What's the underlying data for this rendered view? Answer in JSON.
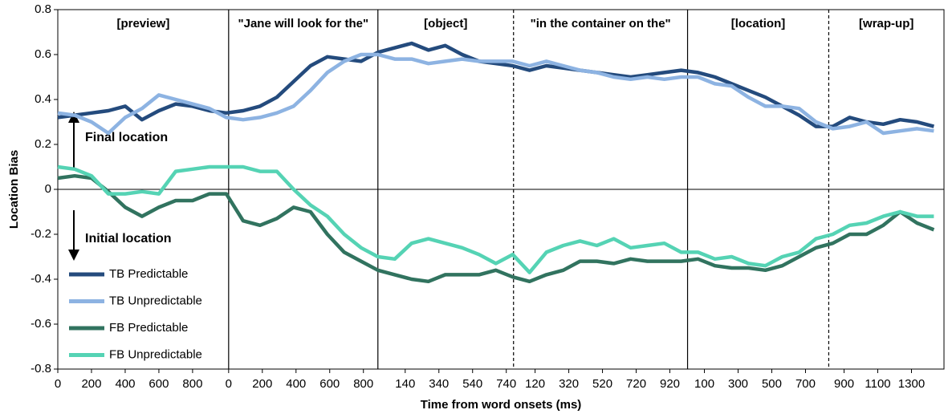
{
  "chart_data": {
    "type": "line",
    "y_label": "Location Bias",
    "x_label": "Time from word onsets (ms)",
    "segments": [
      "[preview]",
      "\"Jane will look for the\"",
      "[object]",
      "\"in the container on the\"",
      "[location]",
      "[wrap-up]"
    ],
    "boundaries": [
      {
        "value": 1014,
        "dashed": false
      },
      {
        "value": 1900,
        "dashed": false
      },
      {
        "value": 2705,
        "dashed": true
      },
      {
        "value": 3738,
        "dashed": false
      },
      {
        "value": 4576,
        "dashed": true
      }
    ],
    "annotations": [
      "Final location",
      "Initial location"
    ],
    "xlim": [
      0,
      5260
    ],
    "ylim": [
      -0.8,
      0.8
    ],
    "yticks": [
      -0.8,
      -0.6,
      -0.4,
      -0.2,
      0,
      0.2,
      0.4,
      0.6,
      0.8
    ],
    "xticks": [
      {
        "value": 0,
        "label": "0"
      },
      {
        "value": 200,
        "label": "200"
      },
      {
        "value": 400,
        "label": "400"
      },
      {
        "value": 600,
        "label": "600"
      },
      {
        "value": 800,
        "label": "800"
      },
      {
        "value": 1014,
        "label": "0"
      },
      {
        "value": 1214,
        "label": "200"
      },
      {
        "value": 1414,
        "label": "400"
      },
      {
        "value": 1614,
        "label": "600"
      },
      {
        "value": 1814,
        "label": "800"
      },
      {
        "value": 2062,
        "label": "140"
      },
      {
        "value": 2262,
        "label": "340"
      },
      {
        "value": 2462,
        "label": "540"
      },
      {
        "value": 2662,
        "label": "740"
      },
      {
        "value": 2833,
        "label": "120"
      },
      {
        "value": 3033,
        "label": "320"
      },
      {
        "value": 3233,
        "label": "520"
      },
      {
        "value": 3433,
        "label": "720"
      },
      {
        "value": 3633,
        "label": "920"
      },
      {
        "value": 3838,
        "label": "100"
      },
      {
        "value": 4038,
        "label": "300"
      },
      {
        "value": 4238,
        "label": "500"
      },
      {
        "value": 4438,
        "label": "700"
      },
      {
        "value": 4667,
        "label": "900"
      },
      {
        "value": 4867,
        "label": "1100"
      },
      {
        "value": 5067,
        "label": "1300"
      }
    ],
    "x": [
      0,
      100,
      200,
      300,
      400,
      500,
      600,
      700,
      800,
      900,
      1000,
      1100,
      1200,
      1300,
      1400,
      1500,
      1600,
      1700,
      1800,
      1900,
      2000,
      2100,
      2200,
      2300,
      2400,
      2500,
      2600,
      2700,
      2800,
      2900,
      3000,
      3100,
      3200,
      3300,
      3400,
      3500,
      3600,
      3700,
      3800,
      3900,
      4000,
      4100,
      4200,
      4300,
      4400,
      4500,
      4600,
      4700,
      4800,
      4900,
      5000,
      5100,
      5200
    ],
    "series": [
      {
        "name": "TB Predictable",
        "color": "#244b7d",
        "values": [
          0.32,
          0.33,
          0.34,
          0.35,
          0.37,
          0.31,
          0.35,
          0.38,
          0.37,
          0.35,
          0.34,
          0.35,
          0.37,
          0.41,
          0.48,
          0.55,
          0.59,
          0.58,
          0.57,
          0.61,
          0.63,
          0.65,
          0.62,
          0.64,
          0.6,
          0.57,
          0.56,
          0.55,
          0.53,
          0.55,
          0.54,
          0.53,
          0.52,
          0.51,
          0.5,
          0.51,
          0.52,
          0.53,
          0.52,
          0.5,
          0.47,
          0.44,
          0.41,
          0.37,
          0.33,
          0.28,
          0.28,
          0.32,
          0.3,
          0.29,
          0.31,
          0.3,
          0.28
        ]
      },
      {
        "name": "TB Unpredictable",
        "color": "#8db3e2",
        "values": [
          0.34,
          0.33,
          0.3,
          0.25,
          0.32,
          0.36,
          0.42,
          0.4,
          0.38,
          0.36,
          0.32,
          0.31,
          0.32,
          0.34,
          0.37,
          0.44,
          0.52,
          0.57,
          0.6,
          0.6,
          0.58,
          0.58,
          0.56,
          0.57,
          0.58,
          0.57,
          0.57,
          0.57,
          0.55,
          0.57,
          0.55,
          0.53,
          0.52,
          0.5,
          0.49,
          0.5,
          0.49,
          0.5,
          0.5,
          0.47,
          0.46,
          0.41,
          0.37,
          0.37,
          0.36,
          0.3,
          0.27,
          0.28,
          0.3,
          0.25,
          0.26,
          0.27,
          0.26
        ]
      },
      {
        "name": "FB Predictable",
        "color": "#31735f",
        "values": [
          0.05,
          0.06,
          0.05,
          -0.01,
          -0.08,
          -0.12,
          -0.08,
          -0.05,
          -0.05,
          -0.02,
          -0.02,
          -0.14,
          -0.16,
          -0.13,
          -0.08,
          -0.1,
          -0.2,
          -0.28,
          -0.32,
          -0.36,
          -0.38,
          -0.4,
          -0.41,
          -0.38,
          -0.38,
          -0.38,
          -0.36,
          -0.39,
          -0.41,
          -0.38,
          -0.36,
          -0.32,
          -0.32,
          -0.33,
          -0.31,
          -0.32,
          -0.32,
          -0.32,
          -0.31,
          -0.34,
          -0.35,
          -0.35,
          -0.36,
          -0.34,
          -0.3,
          -0.26,
          -0.24,
          -0.2,
          -0.2,
          -0.16,
          -0.1,
          -0.15,
          -0.18
        ]
      },
      {
        "name": "FB Unpredictable",
        "color": "#55d3b4",
        "values": [
          0.1,
          0.09,
          0.06,
          -0.02,
          -0.02,
          -0.01,
          -0.02,
          0.08,
          0.09,
          0.1,
          0.1,
          0.1,
          0.08,
          0.08,
          0.0,
          -0.07,
          -0.12,
          -0.2,
          -0.26,
          -0.3,
          -0.31,
          -0.24,
          -0.22,
          -0.24,
          -0.26,
          -0.29,
          -0.33,
          -0.29,
          -0.37,
          -0.28,
          -0.25,
          -0.23,
          -0.25,
          -0.22,
          -0.26,
          -0.25,
          -0.24,
          -0.28,
          -0.28,
          -0.31,
          -0.3,
          -0.33,
          -0.34,
          -0.3,
          -0.28,
          -0.22,
          -0.2,
          -0.16,
          -0.15,
          -0.12,
          -0.1,
          -0.12,
          -0.12
        ]
      }
    ]
  }
}
